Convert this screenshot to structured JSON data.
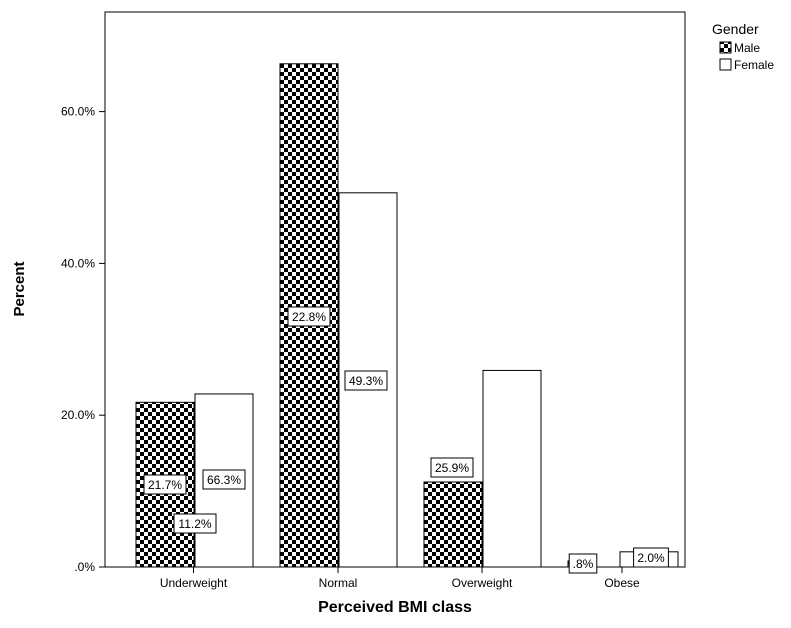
{
  "chart_data": {
    "type": "bar",
    "xlabel": "Perceived BMI class",
    "ylabel": "Percent",
    "categories": [
      "Underweight",
      "Normal",
      "Overweight",
      "Obese"
    ],
    "ylim": [
      0,
      75
    ],
    "yticks": [
      {
        "value": 0,
        "label": ".0%"
      },
      {
        "value": 20,
        "label": "20.0%"
      },
      {
        "value": 40,
        "label": "40.0%"
      },
      {
        "value": 60,
        "label": "60.0%"
      }
    ],
    "series": [
      {
        "name": "Male",
        "values": [
          21.7,
          66.3,
          11.2,
          0.8
        ],
        "labels": [
          "21.7%",
          "66.3%",
          "11.2%",
          ".8%"
        ],
        "fill": "checkered"
      },
      {
        "name": "Female",
        "values": [
          22.8,
          49.3,
          25.9,
          2.0
        ],
        "labels": [
          "22.8%",
          "49.3%",
          "25.9%",
          "2.0%"
        ],
        "fill": "white"
      }
    ],
    "legend": {
      "title": "Gender",
      "placement": "top-right"
    },
    "grid": false,
    "colors": {
      "pattern": "#000000",
      "background": "#ffffff",
      "stroke": "#000000"
    }
  }
}
